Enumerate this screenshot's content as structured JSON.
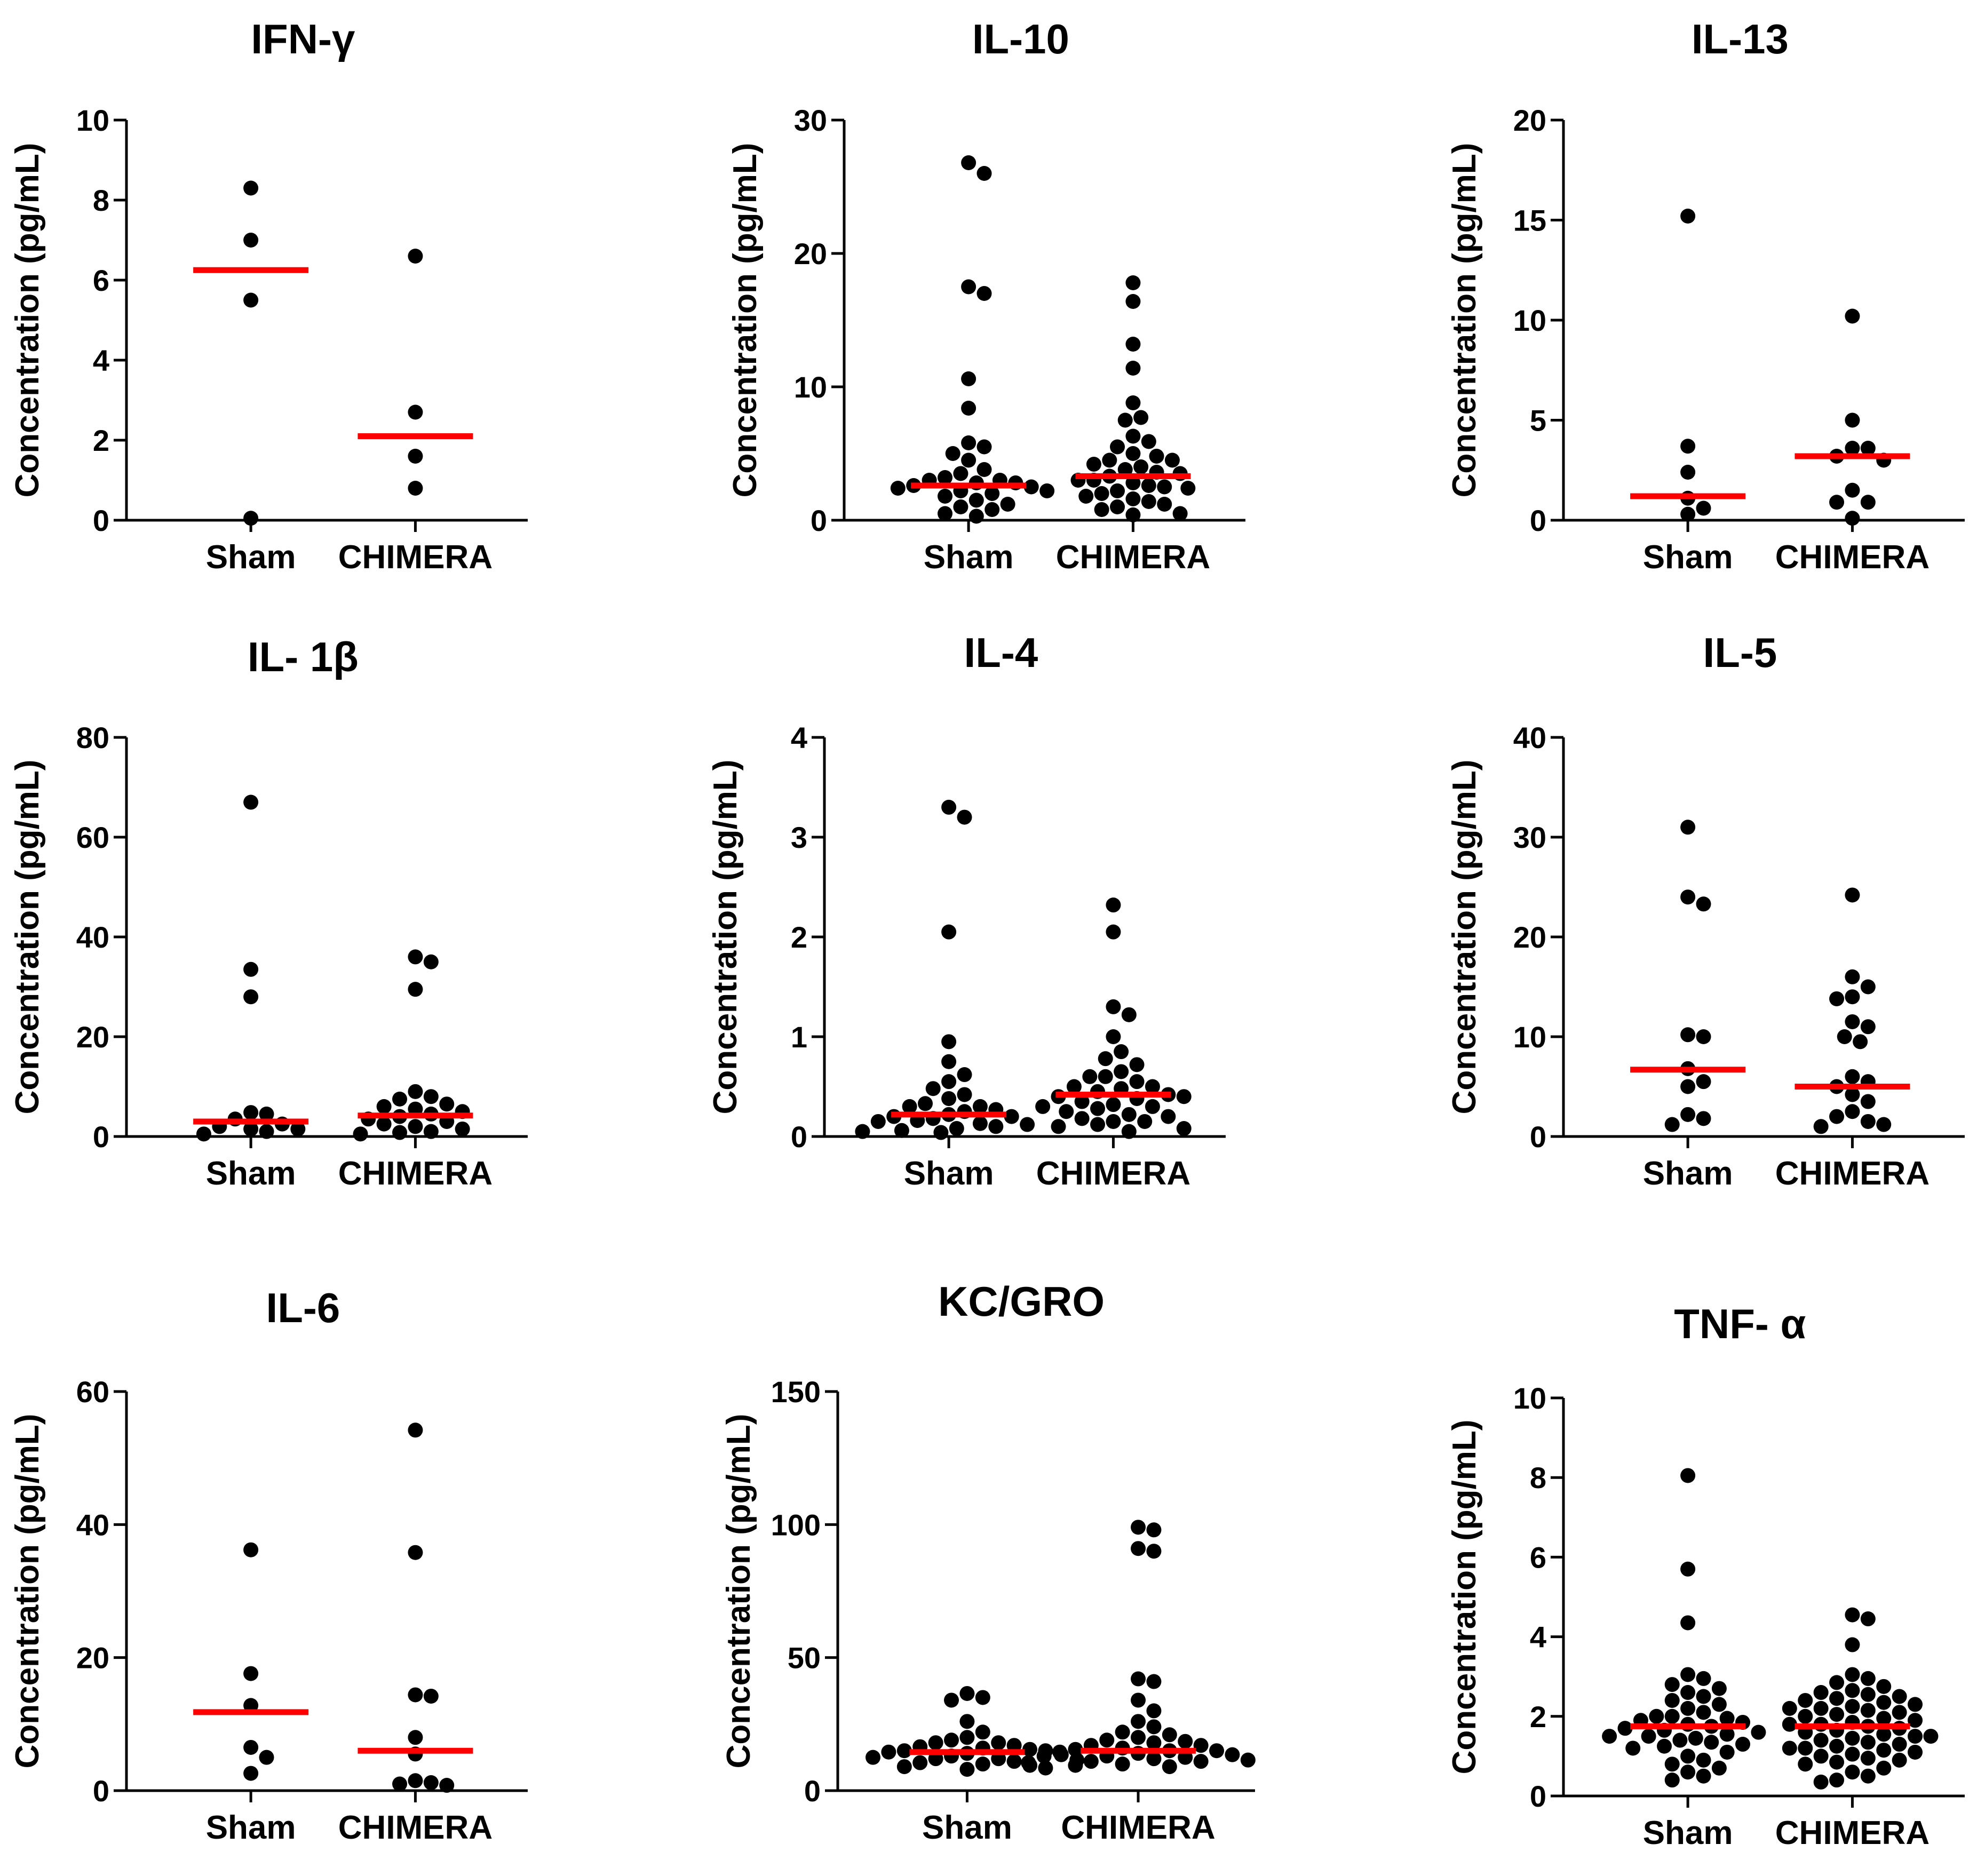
{
  "common": {
    "ylabel": "Concentration (pg/mL)",
    "categories": [
      "Sham",
      "CHIMERA"
    ],
    "point_color": "#000000",
    "median_color": "#ff0000"
  },
  "chart_data": [
    {
      "type": "scatter",
      "title": "IFN-γ",
      "ylabel": "Concentration (pg/mL)",
      "categories": [
        "Sham",
        "CHIMERA"
      ],
      "ylim": [
        0,
        10
      ],
      "yticks": [
        0,
        2,
        4,
        6,
        8,
        10
      ],
      "series": [
        {
          "category": "Sham",
          "median": 6.25,
          "values": [
            8.3,
            7.0,
            5.5,
            0.05
          ]
        },
        {
          "category": "CHIMERA",
          "median": 2.1,
          "values": [
            6.6,
            2.7,
            1.6,
            0.8
          ]
        }
      ]
    },
    {
      "type": "scatter",
      "title": "IL-10",
      "ylabel": "Concentration (pg/mL)",
      "categories": [
        "Sham",
        "CHIMERA"
      ],
      "ylim": [
        0,
        30
      ],
      "yticks": [
        0,
        10,
        20,
        30
      ],
      "series": [
        {
          "category": "Sham",
          "median": 2.6,
          "values": [
            26.8,
            26.0,
            17.5,
            17.0,
            10.6,
            8.4,
            5.8,
            5.5,
            5.0,
            4.5,
            3.8,
            3.5,
            3.2,
            3.0,
            2.8,
            2.8,
            2.6,
            2.5,
            2.4,
            2.2,
            2.0,
            1.8,
            1.5,
            1.2,
            1.0,
            0.8,
            0.5,
            0.3,
            2.2,
            3.0
          ]
        },
        {
          "category": "CHIMERA",
          "median": 3.3,
          "values": [
            17.8,
            16.4,
            13.2,
            11.4,
            8.8,
            7.7,
            7.5,
            6.3,
            5.9,
            5.5,
            5.0,
            4.8,
            4.5,
            4.2,
            4.0,
            3.8,
            3.6,
            3.5,
            3.3,
            3.0,
            2.8,
            2.6,
            2.4,
            2.2,
            2.0,
            1.8,
            1.6,
            1.4,
            1.2,
            1.0,
            0.8,
            0.5,
            0.4,
            2.5,
            3.0,
            4.5
          ]
        }
      ]
    },
    {
      "type": "scatter",
      "title": "IL-13",
      "ylabel": "Concentration (pg/mL)",
      "categories": [
        "Sham",
        "CHIMERA"
      ],
      "ylim": [
        0,
        20
      ],
      "yticks": [
        0,
        5,
        10,
        15,
        20
      ],
      "series": [
        {
          "category": "Sham",
          "median": 1.2,
          "values": [
            15.2,
            3.7,
            2.4,
            1.1,
            0.6,
            0.3
          ]
        },
        {
          "category": "CHIMERA",
          "median": 3.2,
          "values": [
            10.2,
            5.0,
            3.6,
            3.6,
            3.2,
            3.0,
            1.5,
            0.9,
            0.9,
            0.1
          ]
        }
      ]
    },
    {
      "type": "scatter",
      "title": "IL- 1β",
      "ylabel": "Concentration (pg/mL)",
      "categories": [
        "Sham",
        "CHIMERA"
      ],
      "ylim": [
        0,
        80
      ],
      "yticks": [
        0,
        20,
        40,
        60,
        80
      ],
      "series": [
        {
          "category": "Sham",
          "median": 3.0,
          "values": [
            67.0,
            33.5,
            28.0,
            4.5,
            4.8,
            3.5,
            2.5,
            2.0,
            1.5,
            1.5,
            1.0,
            0.5
          ]
        },
        {
          "category": "CHIMERA",
          "median": 4.2,
          "values": [
            36.0,
            35.0,
            29.5,
            9.0,
            8.0,
            7.5,
            6.5,
            6.0,
            5.5,
            5.0,
            4.5,
            4.0,
            3.5,
            3.0,
            2.5,
            2.0,
            1.5,
            1.0,
            0.8,
            0.5
          ]
        }
      ]
    },
    {
      "type": "scatter",
      "title": "IL-4",
      "ylabel": "Concentration (pg/mL)",
      "categories": [
        "Sham",
        "CHIMERA"
      ],
      "ylim": [
        0,
        4
      ],
      "yticks": [
        0,
        1,
        2,
        3,
        4
      ],
      "series": [
        {
          "category": "Sham",
          "median": 0.22,
          "values": [
            3.3,
            3.2,
            2.05,
            0.95,
            0.75,
            0.62,
            0.55,
            0.48,
            0.42,
            0.38,
            0.33,
            0.3,
            0.27,
            0.25,
            0.22,
            0.2,
            0.18,
            0.15,
            0.13,
            0.1,
            0.08,
            0.06,
            0.05,
            0.12,
            0.2,
            0.3,
            0.16,
            0.04
          ]
        },
        {
          "category": "CHIMERA",
          "median": 0.42,
          "values": [
            2.32,
            2.05,
            1.3,
            1.22,
            1.0,
            0.85,
            0.78,
            0.72,
            0.65,
            0.6,
            0.55,
            0.5,
            0.48,
            0.45,
            0.42,
            0.4,
            0.38,
            0.35,
            0.32,
            0.3,
            0.28,
            0.25,
            0.22,
            0.2,
            0.18,
            0.15,
            0.12,
            0.1,
            0.08,
            0.05,
            0.6,
            0.5,
            0.4,
            0.3,
            0.15
          ]
        }
      ]
    },
    {
      "type": "scatter",
      "title": "IL-5",
      "ylabel": "Concentration (pg/mL)",
      "categories": [
        "Sham",
        "CHIMERA"
      ],
      "ylim": [
        0,
        40
      ],
      "yticks": [
        0,
        10,
        20,
        30,
        40
      ],
      "series": [
        {
          "category": "Sham",
          "median": 6.7,
          "values": [
            31.0,
            24.0,
            23.3,
            10.2,
            10.0,
            6.8,
            5.5,
            5.0,
            2.2,
            1.8,
            1.2
          ]
        },
        {
          "category": "CHIMERA",
          "median": 5.0,
          "values": [
            24.2,
            16.0,
            15.0,
            14.0,
            13.8,
            11.5,
            11.0,
            10.0,
            9.5,
            6.0,
            5.5,
            5.0,
            4.2,
            3.5,
            2.5,
            2.0,
            1.5,
            1.2,
            1.0
          ]
        }
      ]
    },
    {
      "type": "scatter",
      "title": "IL-6",
      "ylabel": "Concentration (pg/mL)",
      "categories": [
        "Sham",
        "CHIMERA"
      ],
      "ylim": [
        0,
        60
      ],
      "yticks": [
        0,
        20,
        40,
        60
      ],
      "series": [
        {
          "category": "Sham",
          "median": 11.8,
          "values": [
            36.2,
            17.6,
            12.8,
            6.5,
            5.0,
            2.6
          ]
        },
        {
          "category": "CHIMERA",
          "median": 6.0,
          "values": [
            54.2,
            35.8,
            14.4,
            14.2,
            8.0,
            5.5,
            1.5,
            1.2,
            1.0,
            0.8
          ]
        }
      ]
    },
    {
      "type": "scatter",
      "title": "KC/GRO",
      "ylabel": "Concentration (pg/mL)",
      "categories": [
        "Sham",
        "CHIMERA"
      ],
      "ylim": [
        0,
        150
      ],
      "yticks": [
        0,
        50,
        100,
        150
      ],
      "series": [
        {
          "category": "Sham",
          "median": 14.5,
          "values": [
            36.5,
            35.0,
            34.0,
            26.0,
            22.0,
            20.0,
            19.0,
            18.0,
            17.0,
            16.5,
            16.0,
            15.5,
            15.0,
            14.5,
            14.0,
            13.5,
            13.0,
            12.5,
            12.0,
            11.5,
            11.0,
            10.5,
            10.0,
            9.5,
            9.0,
            8.5,
            8.0,
            12.0,
            15.0,
            18.0
          ]
        },
        {
          "category": "CHIMERA",
          "median": 15.0,
          "values": [
            99.0,
            98.0,
            91.0,
            90.0,
            42.0,
            41.0,
            34.0,
            30.0,
            26.0,
            24.0,
            22.0,
            21.0,
            20.0,
            19.0,
            18.5,
            18.0,
            17.0,
            16.0,
            15.5,
            15.0,
            14.5,
            14.0,
            13.5,
            13.0,
            12.5,
            12.0,
            11.5,
            11.0,
            10.5,
            10.0,
            9.5,
            9.0,
            15.0,
            13.0,
            11.0,
            17.0
          ]
        }
      ]
    },
    {
      "type": "scatter",
      "title": "TNF- α",
      "ylabel": "Concentration (pg/mL)",
      "categories": [
        "Sham",
        "CHIMERA"
      ],
      "ylim": [
        0,
        10
      ],
      "yticks": [
        0,
        2,
        4,
        6,
        8,
        10
      ],
      "series": [
        {
          "category": "Sham",
          "median": 1.75,
          "values": [
            8.05,
            5.7,
            4.35,
            3.05,
            2.95,
            2.8,
            2.7,
            2.6,
            2.5,
            2.4,
            2.3,
            2.2,
            2.1,
            2.0,
            1.95,
            1.9,
            1.85,
            1.8,
            1.75,
            1.7,
            1.65,
            1.6,
            1.55,
            1.5,
            1.45,
            1.4,
            1.35,
            1.3,
            1.25,
            1.2,
            1.1,
            1.0,
            0.9,
            0.8,
            0.7,
            0.6,
            0.5,
            0.4,
            1.5,
            2.0
          ]
        },
        {
          "category": "CHIMERA",
          "median": 1.75,
          "values": [
            4.55,
            4.45,
            3.8,
            3.05,
            2.95,
            2.85,
            2.75,
            2.65,
            2.55,
            2.5,
            2.45,
            2.4,
            2.35,
            2.3,
            2.25,
            2.2,
            2.15,
            2.1,
            2.05,
            2.0,
            1.95,
            1.9,
            1.85,
            1.8,
            1.75,
            1.7,
            1.65,
            1.6,
            1.55,
            1.5,
            1.45,
            1.4,
            1.35,
            1.3,
            1.25,
            1.2,
            1.15,
            1.1,
            1.05,
            1.0,
            0.95,
            0.9,
            0.85,
            0.8,
            0.7,
            0.6,
            0.5,
            0.4,
            0.35,
            1.5,
            2.2,
            2.6,
            1.8,
            1.2
          ]
        }
      ]
    }
  ]
}
